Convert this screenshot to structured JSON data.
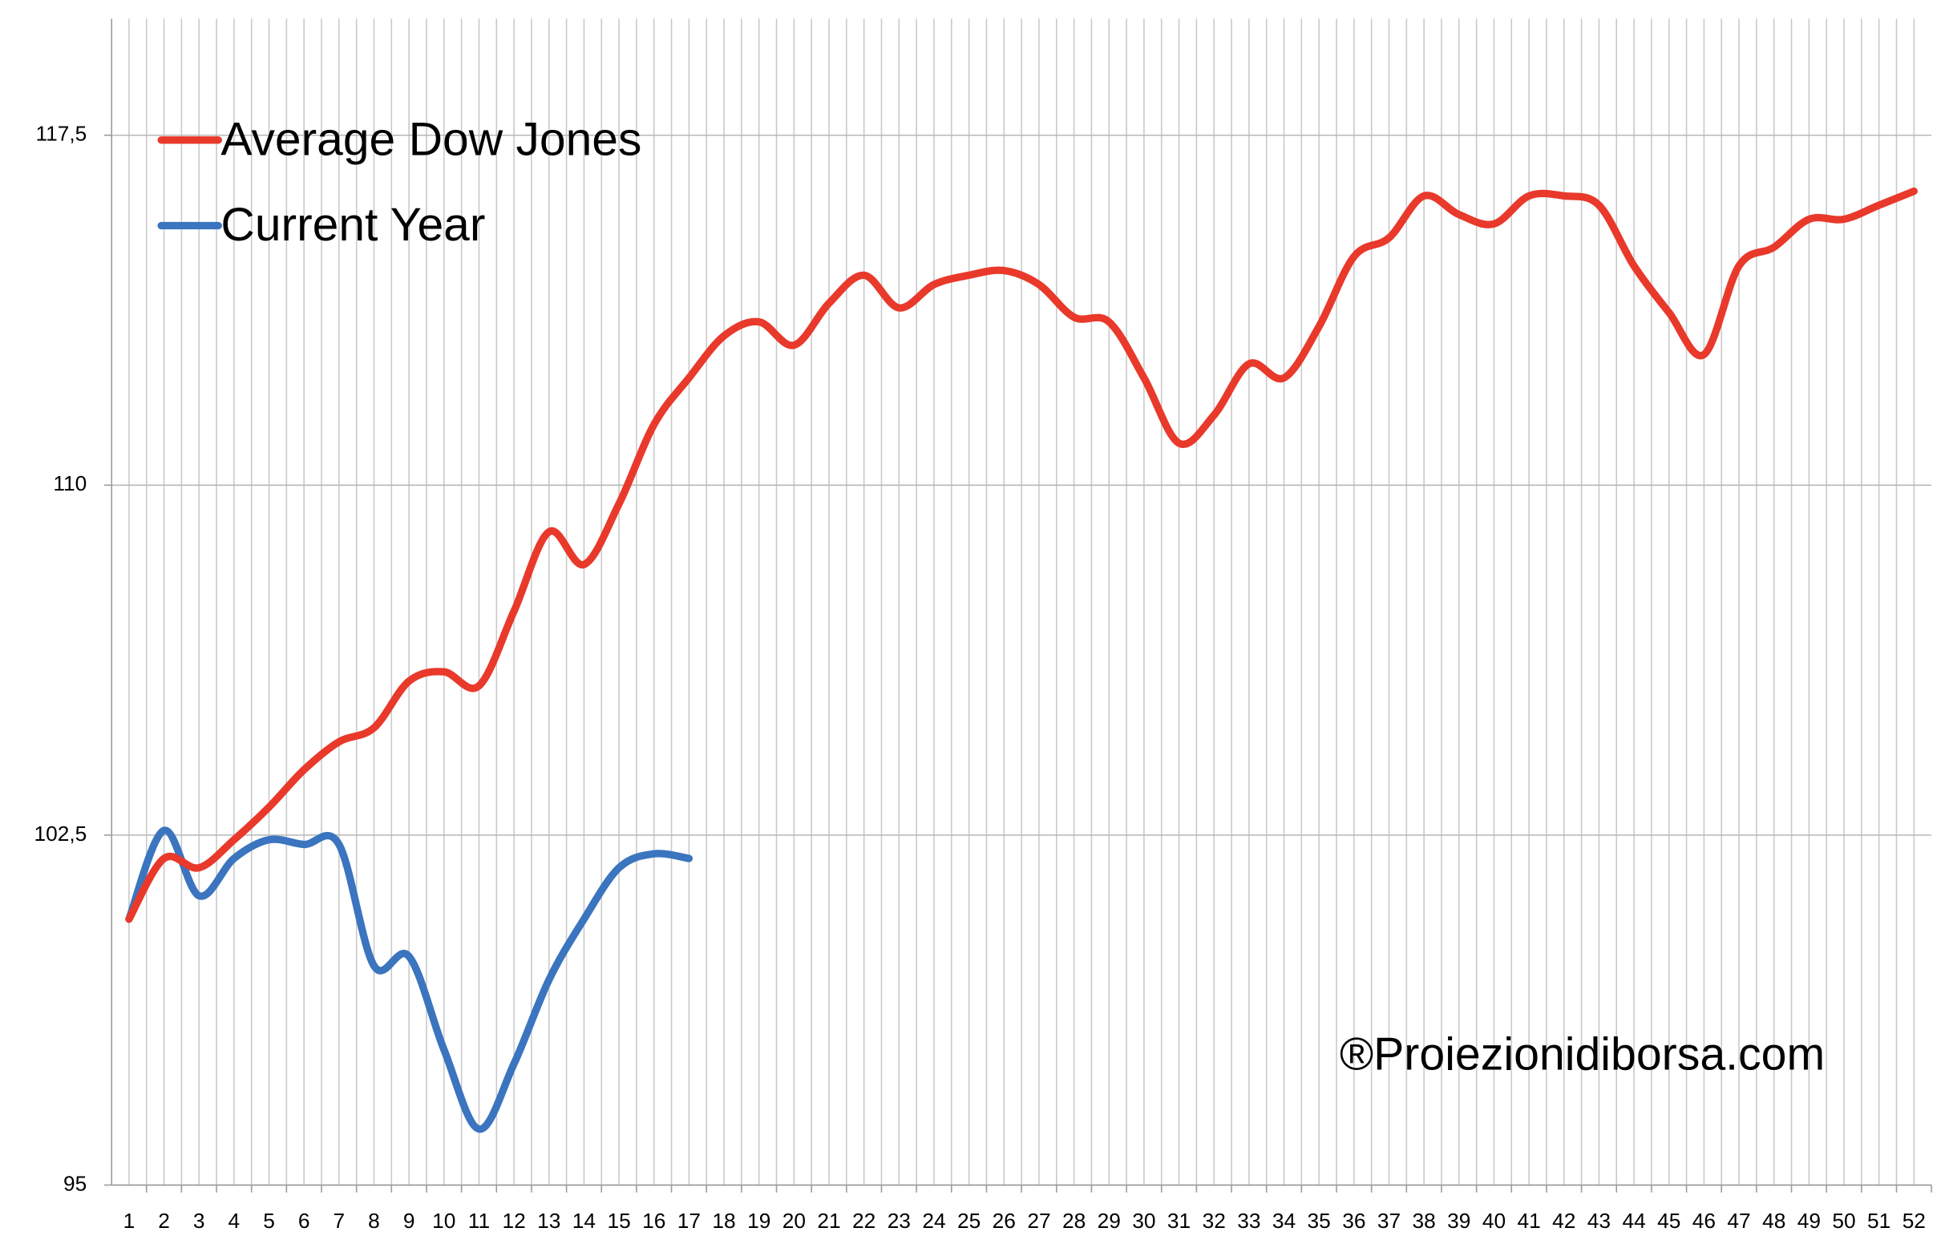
{
  "chart_data": {
    "type": "line",
    "categories": [
      "1",
      "2",
      "3",
      "4",
      "5",
      "6",
      "7",
      "8",
      "9",
      "10",
      "11",
      "12",
      "13",
      "14",
      "15",
      "16",
      "17",
      "18",
      "19",
      "20",
      "21",
      "22",
      "23",
      "24",
      "25",
      "26",
      "27",
      "28",
      "29",
      "30",
      "31",
      "32",
      "33",
      "34",
      "35",
      "36",
      "37",
      "38",
      "39",
      "40",
      "41",
      "42",
      "43",
      "44",
      "45",
      "46",
      "47",
      "48",
      "49",
      "50",
      "51",
      "52"
    ],
    "series": [
      {
        "name": "Average Dow Jones",
        "color": "#e8392b",
        "values": [
          100.7,
          102.0,
          101.8,
          102.4,
          103.1,
          103.9,
          104.5,
          104.8,
          105.8,
          106.0,
          105.7,
          107.3,
          109.0,
          108.3,
          109.6,
          111.3,
          112.3,
          113.2,
          113.5,
          113.0,
          113.9,
          114.5,
          113.8,
          114.3,
          114.5,
          114.6,
          114.3,
          113.6,
          113.5,
          112.3,
          110.9,
          111.5,
          112.6,
          112.3,
          113.4,
          114.9,
          115.3,
          116.2,
          115.8,
          115.6,
          116.2,
          116.2,
          116.0,
          114.7,
          113.7,
          112.8,
          114.7,
          115.1,
          115.7,
          115.7,
          116.0,
          116.3
        ]
      },
      {
        "name": "Current Year",
        "color": "#3b74bf",
        "values": [
          100.7,
          102.6,
          101.2,
          102.0,
          102.4,
          102.3,
          102.3,
          99.7,
          99.9,
          97.9,
          96.2,
          97.6,
          99.4,
          100.7,
          101.8,
          102.1,
          102.0,
          null,
          null,
          null,
          null,
          null,
          null,
          null,
          null,
          null,
          null,
          null,
          null,
          null,
          null,
          null,
          null,
          null,
          null,
          null,
          null,
          null,
          null,
          null,
          null,
          null,
          null,
          null,
          null,
          null,
          null,
          null,
          null,
          null,
          null,
          null
        ]
      }
    ],
    "ylim": [
      95,
      120
    ],
    "yticks": [
      95,
      {
        "value": 102.5,
        "label": "102,5"
      },
      110,
      {
        "value": 117.5,
        "label": "117,5"
      }
    ],
    "grid": true,
    "legend": "top-left",
    "annotation": "®Proiezionidiborsa.com"
  }
}
